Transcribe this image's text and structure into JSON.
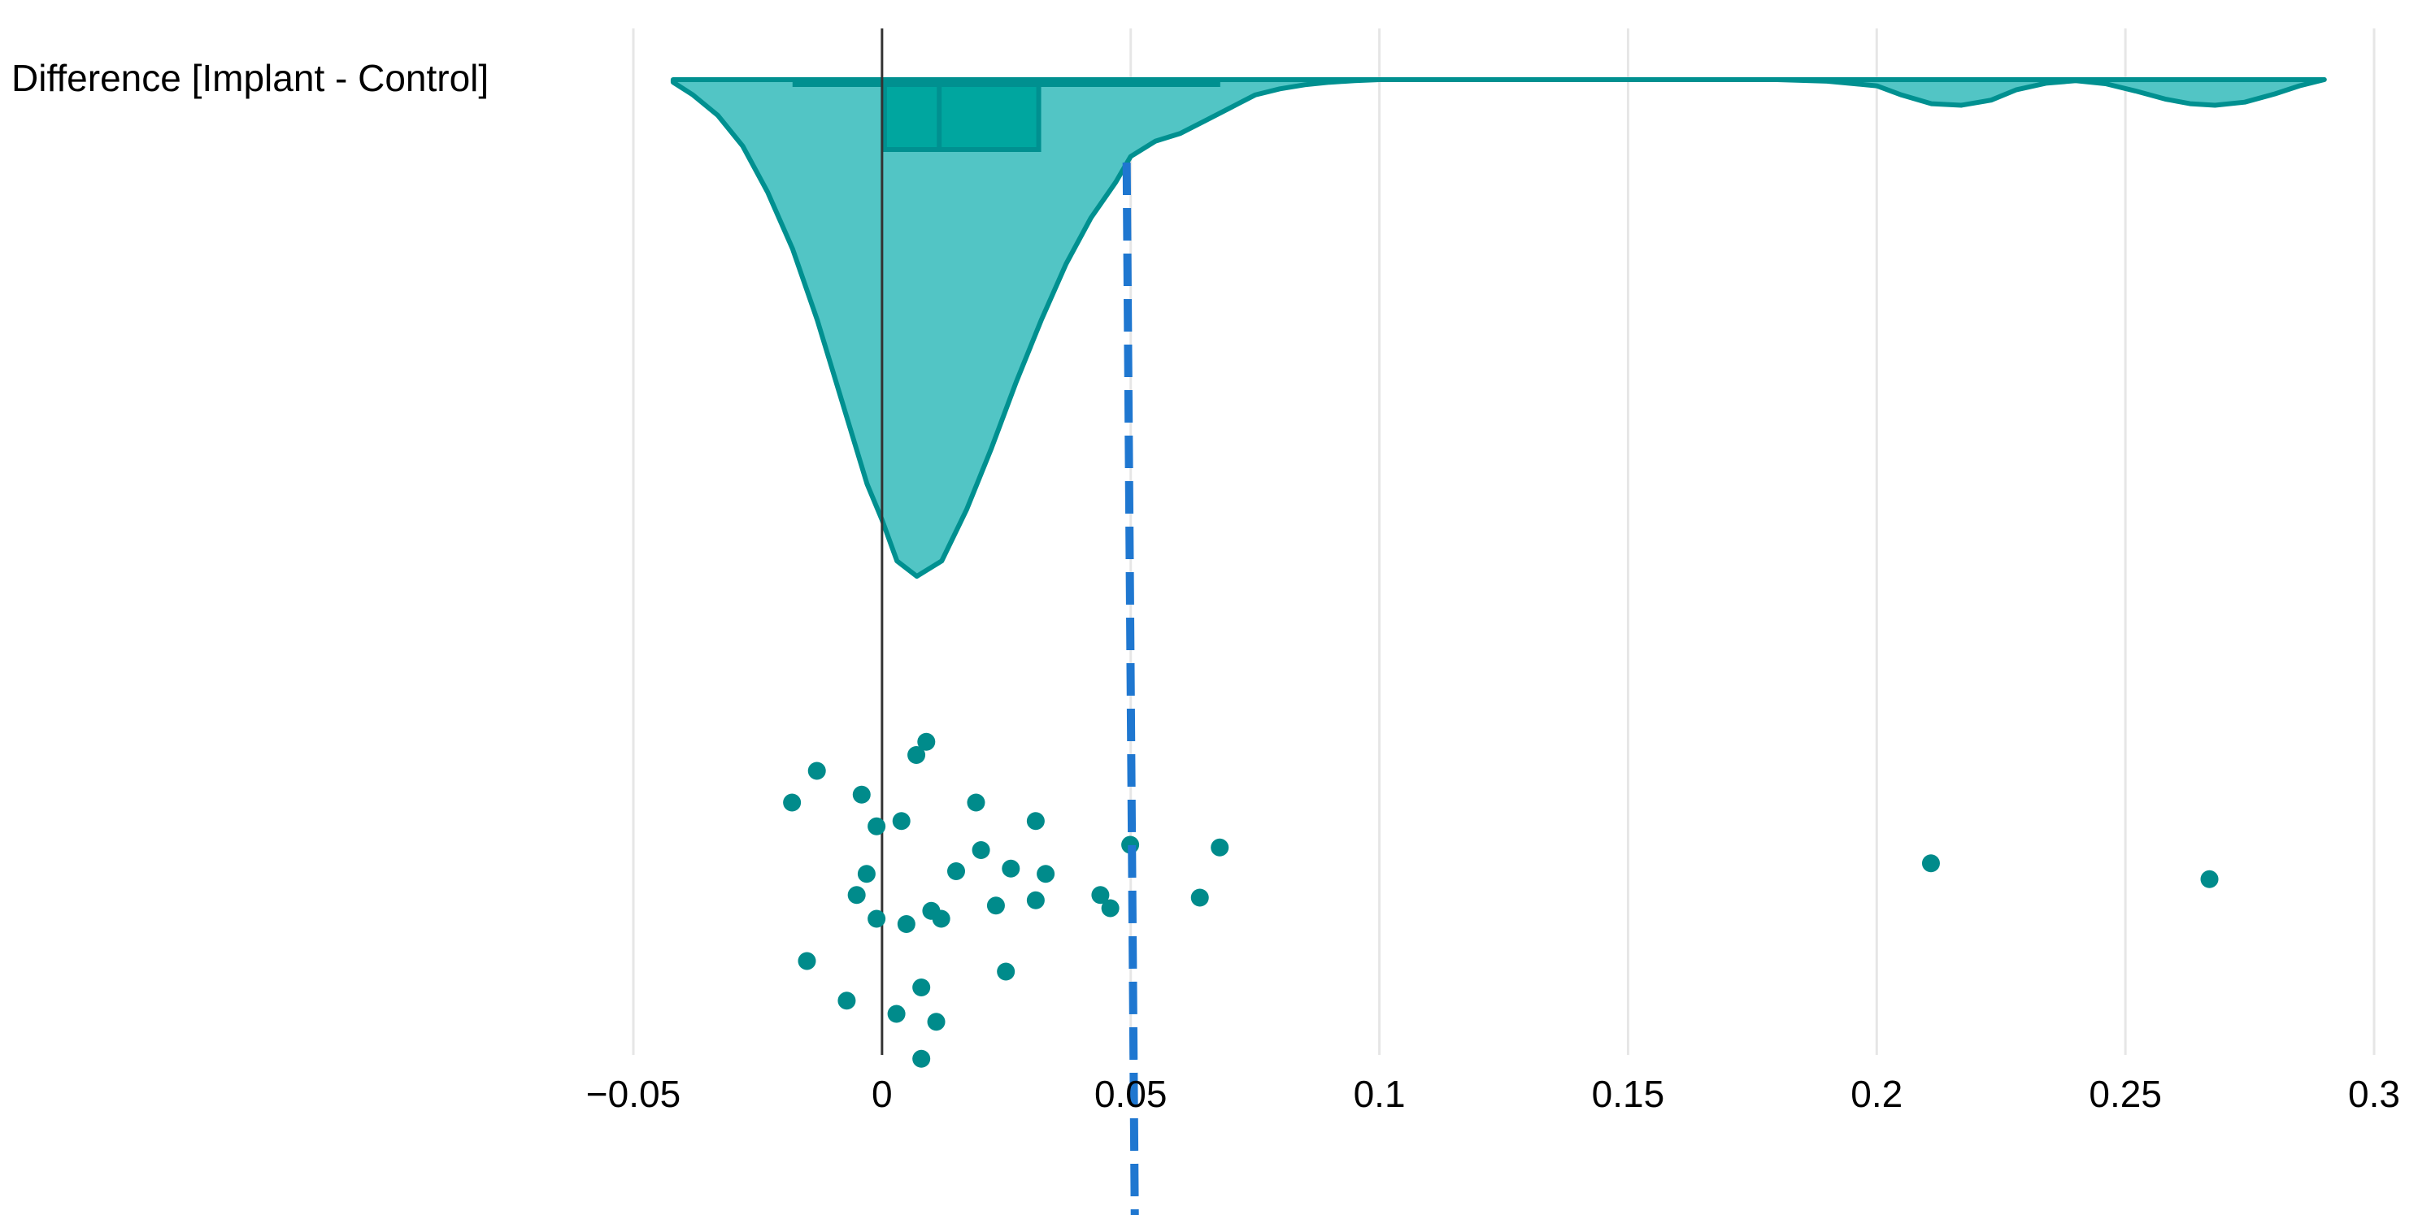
{
  "chart_data": {
    "type": "raincloud",
    "title": "",
    "xlabel": "",
    "ylabel": "",
    "category_label": "Difference [Implant - Control]",
    "xlim": [
      -0.05,
      0.3
    ],
    "x_ticks": [
      -0.05,
      0,
      0.05,
      0.1,
      0.15,
      0.2,
      0.25,
      0.3
    ],
    "x_tick_labels": [
      "−0.05",
      "0",
      "0.05",
      "0.1",
      "0.15",
      "0.2",
      "0.25",
      "0.3"
    ],
    "grid": "vertical",
    "zero_line": 0,
    "reference_line": {
      "x": 0.05,
      "style": "dashed",
      "color": "#1f77d0"
    },
    "colors": {
      "fill": "#52c5c5",
      "stroke": "#009090",
      "points": "#008b8b",
      "grid": "#e6e6e6"
    },
    "box": {
      "whisker_low": -0.018,
      "q1": 0.0005,
      "median": 0.0115,
      "q3": 0.0315,
      "whisker_high": 0.068
    },
    "density_curve": {
      "x": [
        -0.042,
        -0.038,
        -0.033,
        -0.028,
        -0.023,
        -0.018,
        -0.013,
        -0.008,
        -0.003,
        0.0,
        0.003,
        0.007,
        0.012,
        0.017,
        0.022,
        0.027,
        0.032,
        0.037,
        0.042,
        0.047,
        0.05,
        0.055,
        0.06,
        0.065,
        0.07,
        0.075,
        0.08,
        0.085,
        0.09,
        0.095,
        0.1,
        0.12,
        0.15,
        0.18,
        0.19,
        0.2,
        0.205,
        0.211,
        0.217,
        0.223,
        0.228,
        0.234,
        0.24,
        0.246,
        0.252,
        0.258,
        0.263,
        0.268,
        0.274,
        0.28,
        0.285,
        0.29
      ],
      "density": [
        0.005,
        0.03,
        0.07,
        0.13,
        0.22,
        0.33,
        0.47,
        0.63,
        0.79,
        0.86,
        0.94,
        0.97,
        0.94,
        0.84,
        0.72,
        0.59,
        0.47,
        0.36,
        0.27,
        0.2,
        0.15,
        0.12,
        0.105,
        0.08,
        0.055,
        0.03,
        0.018,
        0.01,
        0.005,
        0.002,
        0.0,
        0.0,
        0.0,
        0.0,
        0.003,
        0.012,
        0.03,
        0.047,
        0.05,
        0.04,
        0.02,
        0.007,
        0.002,
        0.008,
        0.022,
        0.038,
        0.047,
        0.05,
        0.044,
        0.028,
        0.012,
        0.0
      ]
    },
    "points": [
      {
        "x": 0.0089,
        "y": 0.07
      },
      {
        "x": 0.0069,
        "y": 0.12
      },
      {
        "x": -0.0131,
        "y": 0.18
      },
      {
        "x": -0.0181,
        "y": 0.3
      },
      {
        "x": -0.0041,
        "y": 0.27
      },
      {
        "x": -0.0011,
        "y": 0.39
      },
      {
        "x": 0.0039,
        "y": 0.37
      },
      {
        "x": 0.0189,
        "y": 0.3
      },
      {
        "x": 0.0309,
        "y": 0.37
      },
      {
        "x": 0.0199,
        "y": 0.48
      },
      {
        "x": 0.0149,
        "y": 0.56
      },
      {
        "x": 0.0259,
        "y": 0.55
      },
      {
        "x": 0.0329,
        "y": 0.57
      },
      {
        "x": -0.0031,
        "y": 0.57
      },
      {
        "x": -0.0051,
        "y": 0.65
      },
      {
        "x": -0.0011,
        "y": 0.74
      },
      {
        "x": 0.0049,
        "y": 0.76
      },
      {
        "x": 0.0099,
        "y": 0.71
      },
      {
        "x": 0.0119,
        "y": 0.74
      },
      {
        "x": 0.0229,
        "y": 0.69
      },
      {
        "x": 0.0309,
        "y": 0.67
      },
      {
        "x": 0.0439,
        "y": 0.65
      },
      {
        "x": 0.0459,
        "y": 0.7
      },
      {
        "x": 0.0499,
        "y": 0.46
      },
      {
        "x": 0.0639,
        "y": 0.66
      },
      {
        "x": 0.0679,
        "y": 0.47
      },
      {
        "x": 0.2109,
        "y": 0.53
      },
      {
        "x": 0.2669,
        "y": 0.59
      },
      {
        "x": -0.0151,
        "y": 0.9
      },
      {
        "x": -0.0071,
        "y": 1.05
      },
      {
        "x": 0.0029,
        "y": 1.1
      },
      {
        "x": 0.0079,
        "y": 1.0
      },
      {
        "x": 0.0109,
        "y": 1.13
      },
      {
        "x": 0.0249,
        "y": 0.94
      },
      {
        "x": 0.0079,
        "y": 1.27
      }
    ]
  }
}
